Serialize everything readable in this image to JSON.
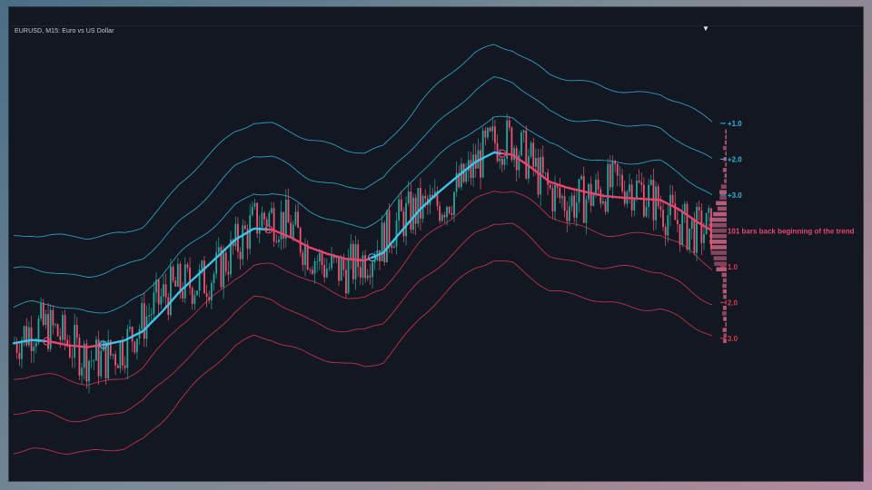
{
  "header": {
    "symbol": "EURUSD, M15:  Euro vs US Dollar",
    "collapse_icon": "chevron-down-icon"
  },
  "colors": {
    "background": "#131722",
    "bull_candle": "#26a69a",
    "bear_candle": "#ef5371",
    "midline_up": "#3fc3e8",
    "midline_down": "#e8456f",
    "band_upper": "#2fb6d8",
    "band_lower": "#d8384f",
    "profile": "#d86a8a"
  },
  "chart_data": {
    "type": "line",
    "title": "",
    "xlabel": "",
    "ylabel": "",
    "band_labels": [
      "+3.0",
      "+2.0",
      "+1.0",
      "1.0",
      "2.0",
      "3.0"
    ],
    "annotation": "101 bars back beginning of the trend",
    "series": [
      {
        "role": "midline",
        "x": [
          0,
          20,
          40,
          60,
          80,
          100,
          120,
          140,
          160,
          180,
          200,
          220,
          240,
          260,
          280,
          300,
          320,
          340,
          360,
          380,
          400,
          420,
          440,
          460,
          480,
          500,
          520,
          540,
          560,
          580,
          600,
          620,
          640,
          660,
          680,
          700,
          720,
          740,
          756
        ],
        "values": [
          1.0,
          1.6,
          1.3,
          0.6,
          0.3,
          0.8,
          1.5,
          3.2,
          6.6,
          10.4,
          13.5,
          16.6,
          19.8,
          21.8,
          21.6,
          20.2,
          18.4,
          17.2,
          16.3,
          16.0,
          17.4,
          21.4,
          25.3,
          28.4,
          31.2,
          33.9,
          35.6,
          35.2,
          32.9,
          30.3,
          29.2,
          28.4,
          27.7,
          27.4,
          27.2,
          27.0,
          25.3,
          23.0,
          21.4
        ]
      }
    ],
    "band_offsets": [
      6.5,
      13.0,
      19.5,
      -6.5,
      -13.0,
      -19.5
    ],
    "trend_markers": [
      {
        "x": 36,
        "direction": "down"
      },
      {
        "x": 97,
        "direction": "up"
      },
      {
        "x": 276,
        "direction": "down"
      },
      {
        "x": 388,
        "direction": "up"
      },
      {
        "x": 529,
        "direction": "down"
      }
    ],
    "trend_segments": [
      {
        "from": 0,
        "to": 36,
        "direction": "up"
      },
      {
        "from": 36,
        "to": 97,
        "direction": "down"
      },
      {
        "from": 97,
        "to": 276,
        "direction": "up"
      },
      {
        "from": 276,
        "to": 388,
        "direction": "down"
      },
      {
        "from": 388,
        "to": 529,
        "direction": "up"
      },
      {
        "from": 529,
        "to": 756,
        "direction": "down"
      }
    ],
    "ylim": [
      -22,
      58
    ],
    "xlim": [
      0,
      760
    ],
    "grid": false
  }
}
